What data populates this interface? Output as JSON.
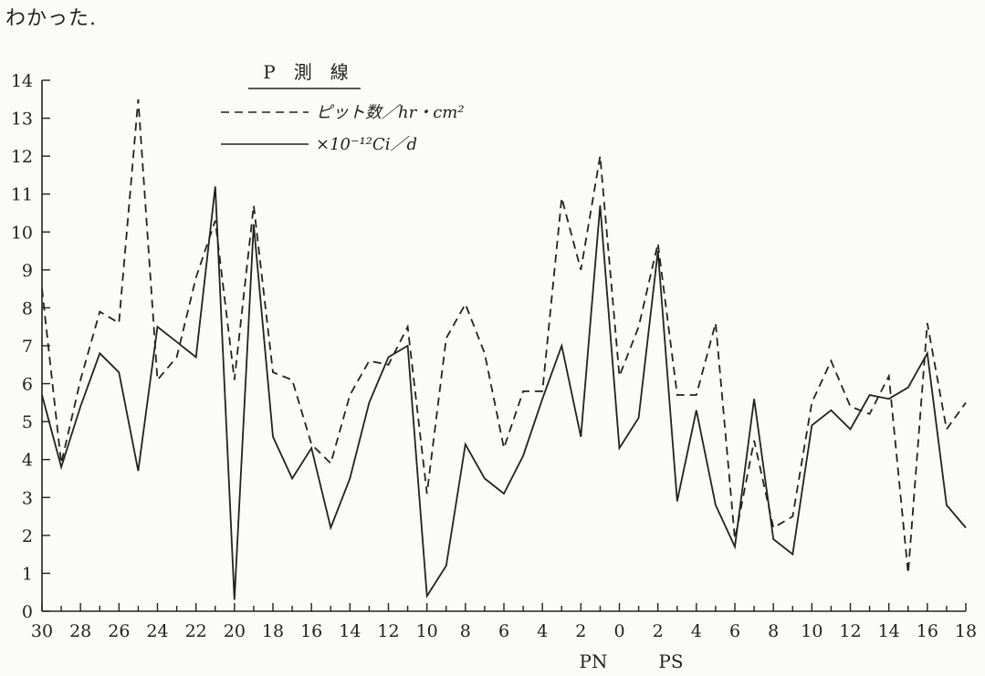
{
  "lead_text": "わかった.",
  "chart_data": {
    "type": "line",
    "title": "P　測　線",
    "xlabel_left": "PN",
    "xlabel_right": "PS",
    "ylim": [
      0,
      14
    ],
    "yticks": [
      "0",
      "1",
      "2",
      "3",
      "4",
      "5",
      "6",
      "7",
      "8",
      "9",
      "10",
      "11",
      "12",
      "13",
      "14"
    ],
    "xtick_labels": [
      "30",
      "28",
      "26",
      "24",
      "22",
      "20",
      "18",
      "16",
      "14",
      "12",
      "10",
      "8",
      "6",
      "4",
      "2",
      "0",
      "2",
      "4",
      "6",
      "8",
      "10",
      "12",
      "14",
      "16",
      "18"
    ],
    "x_positions": [
      30,
      29,
      28,
      27,
      26,
      25,
      24,
      23,
      22,
      21,
      20,
      19,
      18,
      17,
      16,
      15,
      14,
      13,
      12,
      11,
      10,
      9,
      8,
      7,
      6,
      5,
      4,
      3,
      2,
      1,
      0,
      -1,
      -2,
      -3,
      -4,
      -5,
      -6,
      -7,
      -8,
      -9,
      -10,
      -11,
      -12,
      -13,
      -14,
      -15,
      -16,
      -17,
      -18
    ],
    "grid": false,
    "legend_position": "top-center",
    "series": [
      {
        "name": "ピット数／hr・cm²",
        "style": "dashed",
        "values": [
          8.5,
          3.9,
          6.1,
          7.9,
          7.6,
          13.5,
          6.1,
          6.7,
          8.8,
          10.3,
          6.1,
          10.7,
          6.3,
          6.1,
          4.4,
          3.9,
          5.7,
          6.6,
          6.5,
          7.5,
          3.1,
          7.2,
          8.1,
          6.8,
          4.3,
          5.8,
          5.8,
          10.9,
          9.0,
          12.0,
          6.2,
          7.5,
          9.7,
          5.7,
          5.7,
          7.6,
          1.9,
          4.5,
          2.2,
          2.5,
          5.5,
          6.6,
          5.4,
          5.2,
          6.2,
          1.0,
          7.6,
          4.8,
          5.5
        ]
      },
      {
        "name": "×10⁻¹²Ci／d",
        "style": "solid",
        "values": [
          5.7,
          3.8,
          5.4,
          6.8,
          6.3,
          3.7,
          7.5,
          7.1,
          6.7,
          11.2,
          0.3,
          10.2,
          4.6,
          3.5,
          4.3,
          2.2,
          3.5,
          5.5,
          6.7,
          7.0,
          0.4,
          1.2,
          4.4,
          3.5,
          3.1,
          4.1,
          5.6,
          7.0,
          4.6,
          10.7,
          4.3,
          5.1,
          9.5,
          2.9,
          5.3,
          2.8,
          1.7,
          5.6,
          1.9,
          1.5,
          4.9,
          5.3,
          4.8,
          5.7,
          5.6,
          5.9,
          6.8,
          2.8,
          2.2
        ]
      }
    ]
  }
}
